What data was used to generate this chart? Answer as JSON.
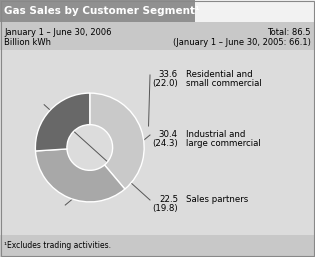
{
  "title": "Gas Sales by Customer Segment¹",
  "date_left1": "January 1 – June 30, 2006",
  "date_left2": "Billion kWh",
  "date_right1": "Total: 86.5",
  "date_right2": "(January 1 – June 30, 2005: 66.1)",
  "footnote": "¹Excludes trading activities.",
  "segments": [
    {
      "label1": "Residential and",
      "label2": "small commercial",
      "value": "33.6",
      "prev_value": "(22.0)",
      "color": "#c9c9c9"
    },
    {
      "label1": "Industrial and",
      "label2": "large commercial",
      "value": "30.4",
      "prev_value": "(24.3)",
      "color": "#a8a8a8"
    },
    {
      "label1": "Sales partners",
      "label2": "",
      "value": "22.5",
      "prev_value": "(19.8)",
      "color": "#686868"
    }
  ],
  "seg_values": [
    33.6,
    30.4,
    22.5
  ],
  "bg_color": "#dcdcdc",
  "header_bg": "#909090",
  "subheader_bg": "#c8c8c8",
  "footer_bg": "#c8c8c8",
  "white_box": "#f0f0f0"
}
